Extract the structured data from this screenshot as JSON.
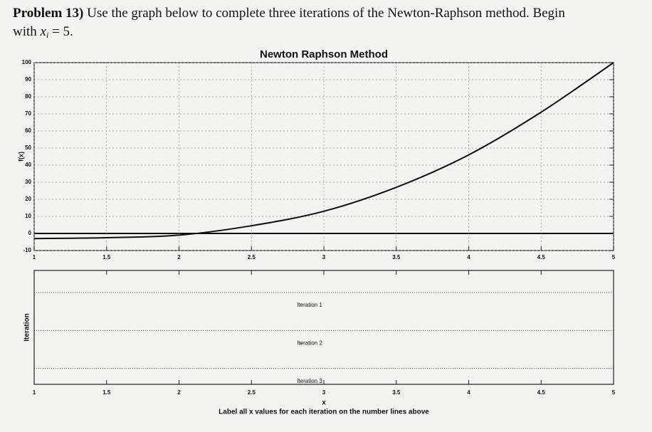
{
  "problem": {
    "label": "Problem 13)",
    "text": "Use the graph below to complete three iterations of the Newton-Raphson method. Begin",
    "text2": "with",
    "variable": "x",
    "subscript": "i",
    "rest": "= 5."
  },
  "chart_data": [
    {
      "type": "line",
      "title": "Newton Raphson Method",
      "ylabel": "f(x)",
      "x": [
        1,
        1.5,
        2,
        2.5,
        3,
        3.5,
        4,
        4.5,
        5
      ],
      "series": [
        {
          "color": "#111111",
          "values": [
            -3,
            -2.5,
            -1,
            4.5,
            13,
            27,
            46,
            71,
            100
          ]
        }
      ],
      "xlim": [
        1,
        5
      ],
      "xticks": [
        1,
        1.5,
        2,
        2.5,
        3,
        3.5,
        4,
        4.5,
        5
      ],
      "ylim": [
        -10,
        100
      ],
      "yticks": [
        -10,
        0,
        10,
        20,
        30,
        40,
        50,
        60,
        70,
        80,
        90,
        100
      ],
      "grid": true
    },
    {
      "type": "numberline",
      "ylabel": "Iteration",
      "xlabel": "x",
      "xlim": [
        1,
        5
      ],
      "xticks": [
        1,
        1.5,
        2,
        2.5,
        3,
        3.5,
        4,
        4.5,
        5
      ],
      "annotations": [
        "Iteration 1",
        "Iteration 2",
        "Iteration 3"
      ],
      "caption": "Label all x values for each iteration on the number lines above"
    }
  ]
}
